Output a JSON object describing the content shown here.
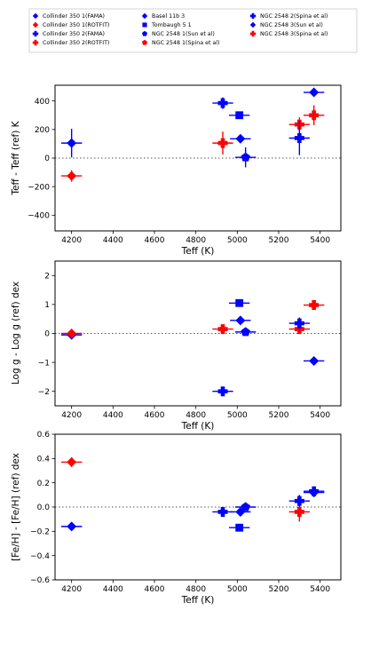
{
  "colors": {
    "blue": "#0000ff",
    "red": "#ff0000",
    "axis": "#000000",
    "reference_line": "#555555"
  },
  "legend": {
    "placement": "top",
    "entries": [
      {
        "label": "Collinder 350 1(FAMA)",
        "color": "#0000ff",
        "marker": "diamond"
      },
      {
        "label": "Collinder 350 1(ROTFIT)",
        "color": "#ff0000",
        "marker": "diamond"
      },
      {
        "label": "Collinder 350 2(FAMA)",
        "color": "#0000ff",
        "marker": "plus"
      },
      {
        "label": "Collinder 350 2(ROTFIT)",
        "color": "#ff0000",
        "marker": "plus"
      },
      {
        "label": "Basel 11b 3",
        "color": "#0000ff",
        "marker": "diamond"
      },
      {
        "label": "Tombaugh 5 1",
        "color": "#0000ff",
        "marker": "square"
      },
      {
        "label": "NGC 2548 1(Sun et al)",
        "color": "#0000ff",
        "marker": "pentagon"
      },
      {
        "label": "NGC 2548 1(Spina et al)",
        "color": "#ff0000",
        "marker": "pentagon"
      },
      {
        "label": "NGC 2548 2(Spina et al)",
        "color": "#0000ff",
        "marker": "plus"
      },
      {
        "label": "NGC 2548 3(Sun et al)",
        "color": "#0000ff",
        "marker": "diamond"
      },
      {
        "label": "NGC 2548 3(Spina et al)",
        "color": "#ff0000",
        "marker": "plus"
      }
    ]
  },
  "chart_data": [
    {
      "type": "scatter",
      "title": "",
      "xlabel": "Teff (K)",
      "ylabel": "Teff - Teff (ref) K",
      "xlim": [
        4120,
        5500
      ],
      "ylim": [
        -510,
        510
      ],
      "xticks": [
        4200,
        4400,
        4600,
        4800,
        5000,
        5200,
        5400
      ],
      "yticks": [
        -400,
        -200,
        0,
        200,
        400
      ],
      "reference_line": 0,
      "grid": false,
      "points": [
        {
          "x": 4200,
          "y": 105,
          "xerr": 50,
          "yerr": 100,
          "color": "#0000ff",
          "marker": "diamond"
        },
        {
          "x": 4200,
          "y": -125,
          "xerr": 50,
          "yerr": 40,
          "color": "#ff0000",
          "marker": "diamond"
        },
        {
          "x": 4930,
          "y": 385,
          "xerr": 50,
          "yerr": 40,
          "color": "#0000ff",
          "marker": "plus"
        },
        {
          "x": 4930,
          "y": 105,
          "xerr": 50,
          "yerr": 80,
          "color": "#ff0000",
          "marker": "plus"
        },
        {
          "x": 5010,
          "y": 300,
          "xerr": 50,
          "yerr": 25,
          "color": "#0000ff",
          "marker": "square"
        },
        {
          "x": 5015,
          "y": 135,
          "xerr": 50,
          "yerr": 20,
          "color": "#0000ff",
          "marker": "diamond"
        },
        {
          "x": 5040,
          "y": 5,
          "xerr": 50,
          "yerr": 70,
          "color": "#0000ff",
          "marker": "pentagon"
        },
        {
          "x": 5300,
          "y": 235,
          "xerr": 50,
          "yerr": 50,
          "color": "#ff0000",
          "marker": "plus"
        },
        {
          "x": 5300,
          "y": 140,
          "xerr": 50,
          "yerr": 120,
          "color": "#0000ff",
          "marker": "plus"
        },
        {
          "x": 5370,
          "y": 300,
          "xerr": 50,
          "yerr": 70,
          "color": "#ff0000",
          "marker": "plus"
        },
        {
          "x": 5370,
          "y": 460,
          "xerr": 50,
          "yerr": 25,
          "color": "#0000ff",
          "marker": "diamond"
        }
      ]
    },
    {
      "type": "scatter",
      "title": "",
      "xlabel": "Teff (K)",
      "ylabel": "Log g - Log g (ref) dex",
      "xlim": [
        4120,
        5500
      ],
      "ylim": [
        -2.5,
        2.5
      ],
      "xticks": [
        4200,
        4400,
        4600,
        4800,
        5000,
        5200,
        5400
      ],
      "yticks": [
        -2,
        -1,
        0,
        1,
        2
      ],
      "reference_line": 0,
      "grid": false,
      "points": [
        {
          "x": 4200,
          "y": -0.05,
          "xerr": 50,
          "yerr": 0.12,
          "color": "#0000ff",
          "marker": "diamond"
        },
        {
          "x": 4200,
          "y": 0.0,
          "xerr": 50,
          "yerr": 0.15,
          "color": "#ff0000",
          "marker": "diamond"
        },
        {
          "x": 4930,
          "y": -2.0,
          "xerr": 50,
          "yerr": 0.12,
          "color": "#0000ff",
          "marker": "plus"
        },
        {
          "x": 4930,
          "y": 0.15,
          "xerr": 50,
          "yerr": 0.15,
          "color": "#ff0000",
          "marker": "plus"
        },
        {
          "x": 5010,
          "y": 1.05,
          "xerr": 50,
          "yerr": 0.1,
          "color": "#0000ff",
          "marker": "square"
        },
        {
          "x": 5015,
          "y": 0.45,
          "xerr": 50,
          "yerr": 0.08,
          "color": "#0000ff",
          "marker": "diamond"
        },
        {
          "x": 5040,
          "y": 0.05,
          "xerr": 50,
          "yerr": 0.08,
          "color": "#0000ff",
          "marker": "pentagon"
        },
        {
          "x": 5300,
          "y": 0.15,
          "xerr": 50,
          "yerr": 0.15,
          "color": "#ff0000",
          "marker": "plus"
        },
        {
          "x": 5300,
          "y": 0.35,
          "xerr": 50,
          "yerr": 0.2,
          "color": "#0000ff",
          "marker": "plus"
        },
        {
          "x": 5370,
          "y": 0.98,
          "xerr": 50,
          "yerr": 0.12,
          "color": "#ff0000",
          "marker": "plus"
        },
        {
          "x": 5370,
          "y": -0.95,
          "xerr": 50,
          "yerr": 0.05,
          "color": "#0000ff",
          "marker": "diamond"
        }
      ]
    },
    {
      "type": "scatter",
      "title": "",
      "xlabel": "Teff (K)",
      "ylabel": "[Fe/H] - [Fe/H] (ref) dex",
      "xlim": [
        4120,
        5500
      ],
      "ylim": [
        -0.6,
        0.6
      ],
      "xticks": [
        4200,
        4400,
        4600,
        4800,
        5000,
        5200,
        5400
      ],
      "yticks": [
        -0.6,
        -0.4,
        -0.2,
        0.0,
        0.2,
        0.4,
        0.6
      ],
      "reference_line": 0,
      "grid": false,
      "points": [
        {
          "x": 4200,
          "y": -0.16,
          "xerr": 50,
          "yerr": 0.025,
          "color": "#0000ff",
          "marker": "diamond"
        },
        {
          "x": 4200,
          "y": 0.37,
          "xerr": 50,
          "yerr": 0.04,
          "color": "#ff0000",
          "marker": "diamond"
        },
        {
          "x": 4930,
          "y": -0.04,
          "xerr": 50,
          "yerr": 0.03,
          "color": "#0000ff",
          "marker": "plus"
        },
        {
          "x": 5010,
          "y": -0.17,
          "xerr": 50,
          "yerr": 0.02,
          "color": "#0000ff",
          "marker": "square"
        },
        {
          "x": 5015,
          "y": -0.04,
          "xerr": 50,
          "yerr": 0.03,
          "color": "#0000ff",
          "marker": "diamond"
        },
        {
          "x": 5040,
          "y": 0.0,
          "xerr": 50,
          "yerr": 0.02,
          "color": "#0000ff",
          "marker": "pentagon"
        },
        {
          "x": 5300,
          "y": -0.04,
          "xerr": 50,
          "yerr": 0.08,
          "color": "#ff0000",
          "marker": "plus"
        },
        {
          "x": 5300,
          "y": 0.05,
          "xerr": 50,
          "yerr": 0.05,
          "color": "#0000ff",
          "marker": "plus"
        },
        {
          "x": 5370,
          "y": 0.13,
          "xerr": 50,
          "yerr": 0.04,
          "color": "#0000ff",
          "marker": "plus"
        },
        {
          "x": 5370,
          "y": 0.12,
          "xerr": 50,
          "yerr": 0.02,
          "color": "#0000ff",
          "marker": "diamond"
        }
      ]
    }
  ]
}
